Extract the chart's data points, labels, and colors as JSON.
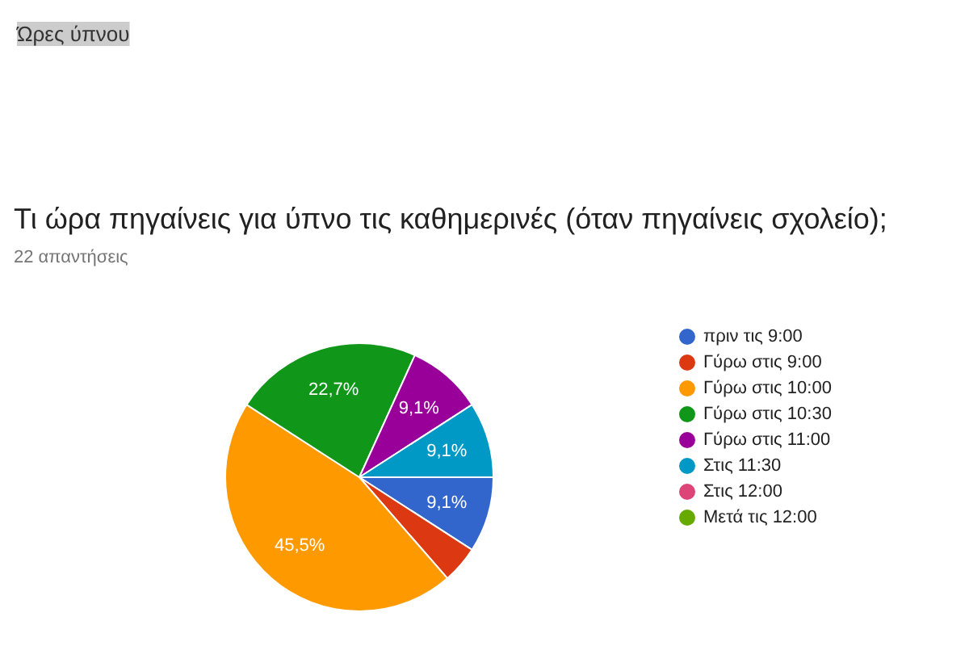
{
  "chart_data": {
    "type": "pie",
    "title": "Τι ώρα πηγαίνεις για ύπνο τις καθημερινές (όταν πηγαίνεις σχολείο);",
    "subtitle": "22 απαντήσεις",
    "annotations": [
      "Ώρες ύπνου"
    ],
    "categories": [
      "πριν τις 9:00",
      "Γύρω στις 9:00",
      "Γύρω στις 10:00",
      "Γύρω στις 10:30",
      "Γύρω στις 11:00",
      "Στις 11:30",
      "Στις 12:00",
      "Μετά τις 12:00"
    ],
    "values": [
      9.1,
      4.5,
      45.5,
      22.7,
      9.1,
      9.1,
      0,
      0
    ],
    "value_labels": [
      "9,1%",
      null,
      "45,5%",
      "22,7%",
      "9,1%",
      "9,1%",
      null,
      null
    ],
    "colors": [
      "#3366cc",
      "#dc3912",
      "#ff9900",
      "#109618",
      "#990099",
      "#0099c6",
      "#dd4477",
      "#66aa00"
    ],
    "legend": "right"
  }
}
